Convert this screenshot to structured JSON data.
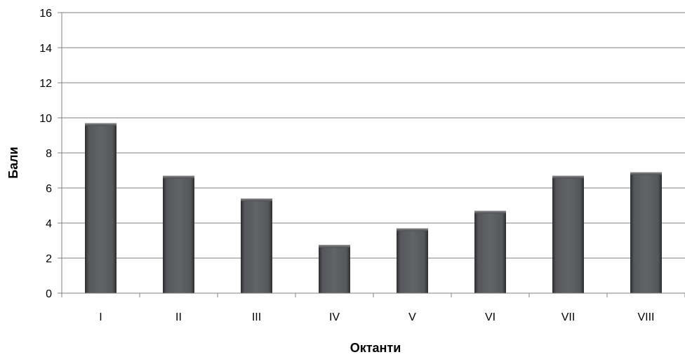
{
  "chart_data": {
    "type": "bar",
    "categories": [
      "I",
      "II",
      "III",
      "IV",
      "V",
      "VI",
      "VII",
      "VIII"
    ],
    "values": [
      9.7,
      6.7,
      5.4,
      2.75,
      3.7,
      4.7,
      6.7,
      6.9
    ],
    "xlabel": "Октанти",
    "ylabel": "Бали",
    "ylim": [
      0,
      16
    ],
    "yticks": [
      0,
      2,
      4,
      6,
      8,
      10,
      12,
      14,
      16
    ],
    "grid": true,
    "legend": "none",
    "bar_color": "#4f5153",
    "grid_color": "#808080"
  }
}
